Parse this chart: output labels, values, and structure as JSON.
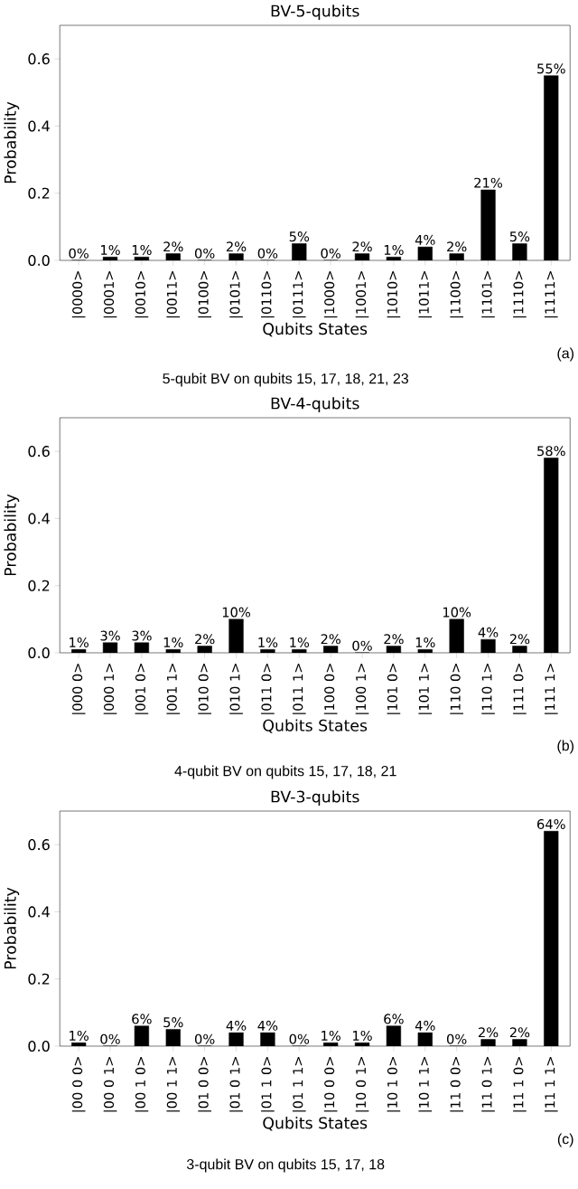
{
  "chart_data": [
    {
      "type": "bar",
      "title": "BV-5-qubits",
      "xlabel": "Qubits States",
      "ylabel": "Probability",
      "color": "#000000",
      "categories": [
        "|0000>",
        "|0001>",
        "|0010>",
        "|0011>",
        "|0100>",
        "|0101>",
        "|0110>",
        "|0111>",
        "|1000>",
        "|1001>",
        "|1010>",
        "|1011>",
        "|1100>",
        "|1101>",
        "|1110>",
        "|1111>"
      ],
      "values": [
        0.0,
        0.01,
        0.01,
        0.02,
        0.0,
        0.02,
        0.0,
        0.05,
        0.0,
        0.02,
        0.01,
        0.04,
        0.02,
        0.21,
        0.05,
        0.55
      ],
      "value_labels": [
        "0%",
        "1%",
        "1%",
        "2%",
        "0%",
        "2%",
        "0%",
        "5%",
        "0%",
        "2%",
        "1%",
        "4%",
        "2%",
        "21%",
        "5%",
        "55%"
      ],
      "ylim": [
        0,
        0.7
      ],
      "yticks": [
        {
          "value": 0,
          "label": "0.0"
        },
        {
          "value": 0.2,
          "label": "0.2"
        },
        {
          "value": 0.4,
          "label": "0.4"
        },
        {
          "value": 0.6,
          "label": "0.6"
        }
      ],
      "annotations": [
        "(a)",
        "5-qubit BV on qubits 15, 17, 18, 21, 23"
      ]
    },
    {
      "type": "bar",
      "title": "BV-4-qubits",
      "xlabel": "Qubits States",
      "ylabel": "Probability",
      "color": "#000000",
      "categories": [
        "|000 0>",
        "|000 1>",
        "|001 0>",
        "|001 1>",
        "|010 0>",
        "|010 1>",
        "|011 0>",
        "|011 1>",
        "|100 0>",
        "|100 1>",
        "|101 0>",
        "|101 1>",
        "|110 0>",
        "|110 1>",
        "|111 0>",
        "|111 1>"
      ],
      "values": [
        0.01,
        0.03,
        0.03,
        0.01,
        0.02,
        0.1,
        0.01,
        0.01,
        0.02,
        0.0,
        0.02,
        0.01,
        0.1,
        0.04,
        0.02,
        0.58
      ],
      "value_labels": [
        "1%",
        "3%",
        "3%",
        "1%",
        "2%",
        "10%",
        "1%",
        "1%",
        "2%",
        "0%",
        "2%",
        "1%",
        "10%",
        "4%",
        "2%",
        "58%"
      ],
      "ylim": [
        0,
        0.7
      ],
      "yticks": [
        {
          "value": 0,
          "label": "0.0"
        },
        {
          "value": 0.2,
          "label": "0.2"
        },
        {
          "value": 0.4,
          "label": "0.4"
        },
        {
          "value": 0.6,
          "label": "0.6"
        }
      ],
      "annotations": [
        "(b)",
        "4-qubit BV on qubits 15, 17, 18, 21"
      ]
    },
    {
      "type": "bar",
      "title": "BV-3-qubits",
      "xlabel": "Qubits States",
      "ylabel": "Probability",
      "color": "#000000",
      "categories": [
        "|00 0 0>",
        "|00 0 1>",
        "|00 1 0>",
        "|00 1 1>",
        "|01 0 0>",
        "|01 0 1>",
        "|01 1 0>",
        "|01 1 1>",
        "|10 0 0>",
        "|10 0 1>",
        "|10 1 0>",
        "|10 1 1>",
        "|11 0 0>",
        "|11 0 1>",
        "|11 1 0>",
        "|11 1 1>"
      ],
      "values": [
        0.01,
        0.0,
        0.06,
        0.05,
        0.0,
        0.04,
        0.04,
        0.0,
        0.01,
        0.01,
        0.06,
        0.04,
        0.0,
        0.02,
        0.02,
        0.64
      ],
      "value_labels": [
        "1%",
        "0%",
        "6%",
        "5%",
        "0%",
        "4%",
        "4%",
        "0%",
        "1%",
        "1%",
        "6%",
        "4%",
        "0%",
        "2%",
        "2%",
        "64%"
      ],
      "ylim": [
        0,
        0.7
      ],
      "yticks": [
        {
          "value": 0,
          "label": "0.0"
        },
        {
          "value": 0.2,
          "label": "0.2"
        },
        {
          "value": 0.4,
          "label": "0.4"
        },
        {
          "value": 0.6,
          "label": "0.6"
        }
      ],
      "annotations": [
        "(c)",
        "3-qubit BV on qubits 15, 17, 18"
      ]
    }
  ]
}
